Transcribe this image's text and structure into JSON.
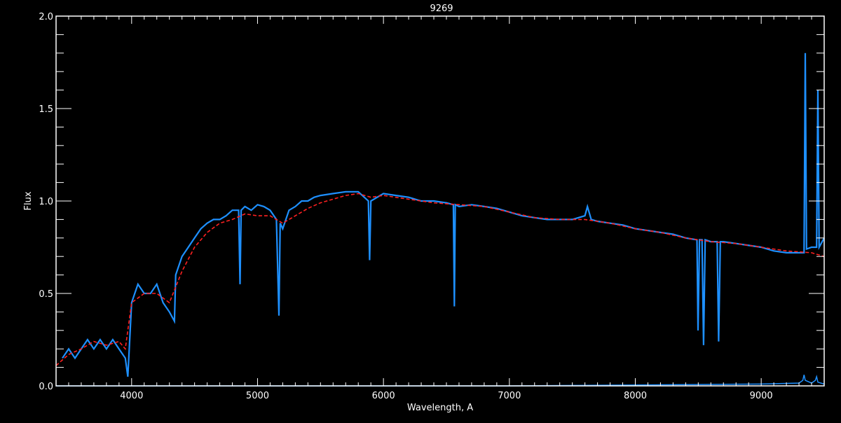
{
  "chart_data": {
    "type": "line",
    "title": "9269",
    "xlabel": "Wavelength, A",
    "ylabel": "Flux",
    "xlim": [
      3400,
      9500
    ],
    "ylim": [
      0,
      2.0
    ],
    "x_major_ticks": [
      4000,
      5000,
      6000,
      7000,
      8000,
      9000
    ],
    "x_tick_labels": [
      "4000",
      "5000",
      "6000",
      "7000",
      "8000",
      "9000"
    ],
    "x_minor_step": 100,
    "y_major_ticks": [
      0,
      0.5,
      1.0,
      1.5,
      2.0
    ],
    "y_tick_labels": [
      "0.0",
      "0.5",
      "1.0",
      "1.5",
      "2.0"
    ],
    "y_minor_step": 0.1,
    "grid": false,
    "colors": {
      "background": "#000000",
      "axes": "#ffffff",
      "spectrum": "#1e90ff",
      "model": "#ff2020",
      "error": "#1e90ff"
    },
    "series": [
      {
        "role": "spectrum",
        "x": [
          3450,
          3500,
          3550,
          3600,
          3650,
          3700,
          3750,
          3800,
          3850,
          3900,
          3950,
          3970,
          4000,
          4050,
          4100,
          4150,
          4200,
          4250,
          4300,
          4340,
          4350,
          4400,
          4450,
          4500,
          4550,
          4600,
          4650,
          4700,
          4750,
          4800,
          4850,
          4861,
          4870,
          4900,
          4950,
          5000,
          5050,
          5100,
          5150,
          5170,
          5180,
          5200,
          5250,
          5300,
          5350,
          5400,
          5450,
          5500,
          5600,
          5700,
          5800,
          5880,
          5890,
          5900,
          6000,
          6100,
          6200,
          6300,
          6400,
          6500,
          6555,
          6563,
          6570,
          6600,
          6700,
          6800,
          6900,
          7000,
          7100,
          7200,
          7300,
          7400,
          7500,
          7600,
          7620,
          7650,
          7700,
          7800,
          7900,
          8000,
          8100,
          8200,
          8300,
          8400,
          8490,
          8498,
          8510,
          8530,
          8542,
          8555,
          8600,
          8650,
          8662,
          8675,
          8700,
          8800,
          8900,
          9000,
          9100,
          9200,
          9300,
          9340,
          9350,
          9360,
          9400,
          9440,
          9450,
          9460,
          9500
        ],
        "y": [
          0.15,
          0.2,
          0.15,
          0.2,
          0.25,
          0.2,
          0.25,
          0.2,
          0.25,
          0.2,
          0.15,
          0.05,
          0.45,
          0.55,
          0.5,
          0.5,
          0.55,
          0.45,
          0.4,
          0.35,
          0.6,
          0.7,
          0.75,
          0.8,
          0.85,
          0.88,
          0.9,
          0.9,
          0.92,
          0.95,
          0.95,
          0.55,
          0.95,
          0.97,
          0.95,
          0.98,
          0.97,
          0.95,
          0.9,
          0.38,
          0.88,
          0.85,
          0.95,
          0.97,
          1.0,
          1.0,
          1.02,
          1.03,
          1.04,
          1.05,
          1.05,
          1.0,
          0.68,
          1.0,
          1.04,
          1.03,
          1.02,
          1.0,
          1.0,
          0.99,
          0.98,
          0.43,
          0.98,
          0.97,
          0.98,
          0.97,
          0.96,
          0.94,
          0.92,
          0.91,
          0.9,
          0.9,
          0.9,
          0.92,
          0.97,
          0.9,
          0.89,
          0.88,
          0.87,
          0.85,
          0.84,
          0.83,
          0.82,
          0.8,
          0.79,
          0.3,
          0.79,
          0.79,
          0.22,
          0.79,
          0.78,
          0.78,
          0.24,
          0.78,
          0.78,
          0.77,
          0.76,
          0.75,
          0.73,
          0.72,
          0.72,
          0.72,
          1.8,
          0.74,
          0.75,
          0.75,
          1.6,
          0.75,
          0.8
        ]
      },
      {
        "role": "model",
        "x": [
          3400,
          3500,
          3600,
          3700,
          3800,
          3900,
          3950,
          4000,
          4100,
          4200,
          4300,
          4400,
          4500,
          4600,
          4700,
          4800,
          4900,
          5000,
          5100,
          5200,
          5300,
          5400,
          5500,
          5600,
          5700,
          5800,
          5900,
          6000,
          6200,
          6400,
          6600,
          6800,
          7000,
          7200,
          7400,
          7600,
          7800,
          8000,
          8200,
          8400,
          8600,
          8800,
          9000,
          9200,
          9400,
          9500
        ],
        "y": [
          0.11,
          0.17,
          0.2,
          0.24,
          0.22,
          0.24,
          0.2,
          0.45,
          0.5,
          0.5,
          0.45,
          0.62,
          0.75,
          0.83,
          0.88,
          0.9,
          0.93,
          0.92,
          0.92,
          0.88,
          0.92,
          0.96,
          0.99,
          1.01,
          1.03,
          1.04,
          1.02,
          1.03,
          1.01,
          0.99,
          0.98,
          0.97,
          0.94,
          0.91,
          0.9,
          0.9,
          0.88,
          0.85,
          0.83,
          0.8,
          0.78,
          0.77,
          0.75,
          0.73,
          0.72,
          0.7
        ]
      },
      {
        "role": "error",
        "x": [
          3400,
          4000,
          5000,
          6000,
          7000,
          8000,
          9000,
          9300,
          9330,
          9340,
          9350,
          9400,
          9430,
          9440,
          9450,
          9500
        ],
        "y": [
          0.0,
          0.0,
          0.0,
          0.0,
          0.0,
          0.005,
          0.01,
          0.015,
          0.03,
          0.06,
          0.03,
          0.015,
          0.03,
          0.05,
          0.02,
          0.01
        ]
      }
    ]
  }
}
